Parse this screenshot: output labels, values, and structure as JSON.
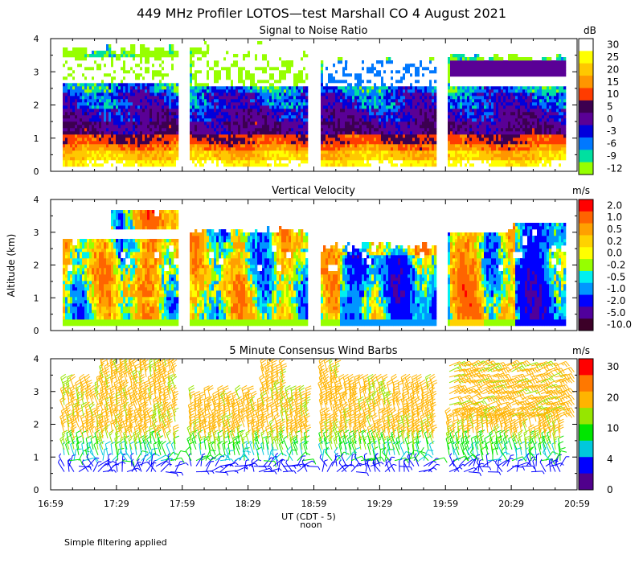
{
  "title": "449 MHz Profiler LOTOS—test Marshall CO  4 August 2021",
  "ylabel": "Altitude (km)",
  "xlabel": "UT (CDT - 5)",
  "noon_label": "noon",
  "footnote": "Simple filtering applied",
  "x_ticks": [
    "16:59",
    "17:29",
    "17:59",
    "18:29",
    "18:59",
    "19:29",
    "19:59",
    "20:29",
    "20:59"
  ],
  "y_ticks": [
    "0",
    "1",
    "2",
    "3",
    "4"
  ],
  "panels": [
    {
      "id": "snr",
      "subtitle": "Signal to Noise Ratio",
      "units": "dB",
      "colorbar_labels": [
        "30",
        "25",
        "20",
        "15",
        "10",
        "5",
        "0",
        "-3",
        "-6",
        "-9",
        "-12"
      ],
      "colorbar_colors": [
        "#ffffff",
        "#ffff00",
        "#ffc800",
        "#ff9600",
        "#ff3c00",
        "#3c0050",
        "#5a0096",
        "#0000dc",
        "#0078ff",
        "#00e0a0",
        "#96ff00"
      ]
    },
    {
      "id": "vv",
      "subtitle": "Vertical Velocity",
      "units": "m/s",
      "colorbar_labels": [
        "2.0",
        "1.0",
        "0.5",
        "0.2",
        "0.0",
        "-0.2",
        "-0.5",
        "-1.0",
        "-2.0",
        "-5.0",
        "-10.0"
      ],
      "colorbar_colors": [
        "#ff0000",
        "#ff6400",
        "#ffa000",
        "#ffd200",
        "#ffff00",
        "#96ff00",
        "#00f0f0",
        "#0096ff",
        "#0000ff",
        "#50009b",
        "#3c0028"
      ]
    },
    {
      "id": "wind",
      "subtitle": "5 Minute Consensus Wind Barbs",
      "units": "m/s",
      "colorbar_labels": [
        "30",
        "20",
        "10",
        "4",
        "0"
      ],
      "colorbar_colors": [
        "#ff0000",
        "#ff7800",
        "#ffb400",
        "#96e600",
        "#00e600",
        "#00c8dc",
        "#0000ff",
        "#50008c"
      ]
    }
  ],
  "chart_data": {
    "type": "heatmap",
    "time_range_ut": [
      "16:59",
      "20:59"
    ],
    "altitude_range_km": [
      0,
      4
    ],
    "data_gaps_ut": [
      [
        "17:58",
        "18:02"
      ],
      [
        "18:57",
        "19:01"
      ],
      [
        "19:57",
        "20:01"
      ]
    ],
    "snr_db_profile": {
      "altitude_km": [
        0.2,
        0.4,
        0.6,
        0.8,
        1.0,
        1.3,
        1.6,
        2.0,
        2.3,
        2.6,
        3.0,
        3.3,
        3.6
      ],
      "value_db": [
        25,
        20,
        15,
        10,
        5,
        0,
        -3,
        -3,
        -6,
        -9,
        -12,
        -6,
        -12
      ]
    },
    "wind_barbs": {
      "speed_m_s_by_altitude": [
        {
          "altitude_km": 0.6,
          "speed": 4
        },
        {
          "altitude_km": 1.0,
          "speed": 8
        },
        {
          "altitude_km": 1.5,
          "speed": 12
        },
        {
          "altitude_km": 2.2,
          "speed": 18
        },
        {
          "altitude_km": 3.0,
          "speed": 20
        },
        {
          "altitude_km": 3.8,
          "speed": 22
        }
      ]
    }
  }
}
